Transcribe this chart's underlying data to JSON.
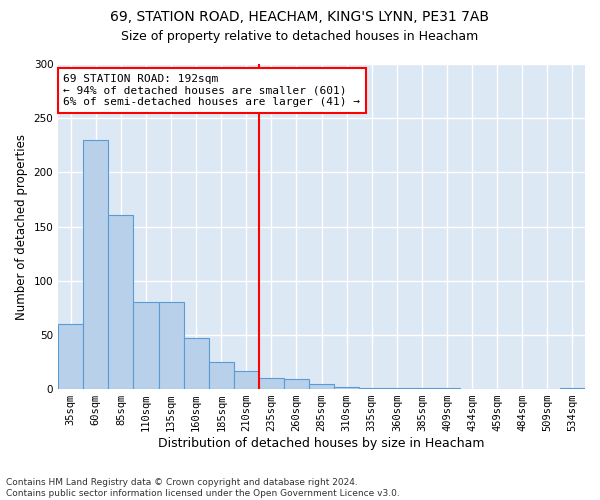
{
  "title1": "69, STATION ROAD, HEACHAM, KING'S LYNN, PE31 7AB",
  "title2": "Size of property relative to detached houses in Heacham",
  "xlabel": "Distribution of detached houses by size in Heacham",
  "ylabel": "Number of detached properties",
  "footnote": "Contains HM Land Registry data © Crown copyright and database right 2024.\nContains public sector information licensed under the Open Government Licence v3.0.",
  "bar_labels": [
    "35sqm",
    "60sqm",
    "85sqm",
    "110sqm",
    "135sqm",
    "160sqm",
    "185sqm",
    "210sqm",
    "235sqm",
    "260sqm",
    "285sqm",
    "310sqm",
    "335sqm",
    "360sqm",
    "385sqm",
    "409sqm",
    "434sqm",
    "459sqm",
    "484sqm",
    "509sqm",
    "534sqm"
  ],
  "bar_values": [
    60,
    230,
    161,
    80,
    80,
    47,
    25,
    17,
    10,
    9,
    5,
    2,
    1,
    1,
    1,
    1,
    0,
    0,
    0,
    0,
    1
  ],
  "bar_color": "#b8d0ea",
  "bar_edge_color": "#5b9bd5",
  "vline_x": 7.5,
  "annotation_text": "69 STATION ROAD: 192sqm\n← 94% of detached houses are smaller (601)\n6% of semi-detached houses are larger (41) →",
  "annotation_box_color": "white",
  "annotation_box_edge_color": "red",
  "vline_color": "red",
  "ylim": [
    0,
    300
  ],
  "yticks": [
    0,
    50,
    100,
    150,
    200,
    250,
    300
  ],
  "background_color": "#dde8f5",
  "grid_color": "white",
  "title1_fontsize": 10,
  "title2_fontsize": 9,
  "xlabel_fontsize": 9,
  "ylabel_fontsize": 8.5,
  "tick_fontsize": 7.5,
  "annotation_fontsize": 8,
  "footnote_fontsize": 6.5
}
